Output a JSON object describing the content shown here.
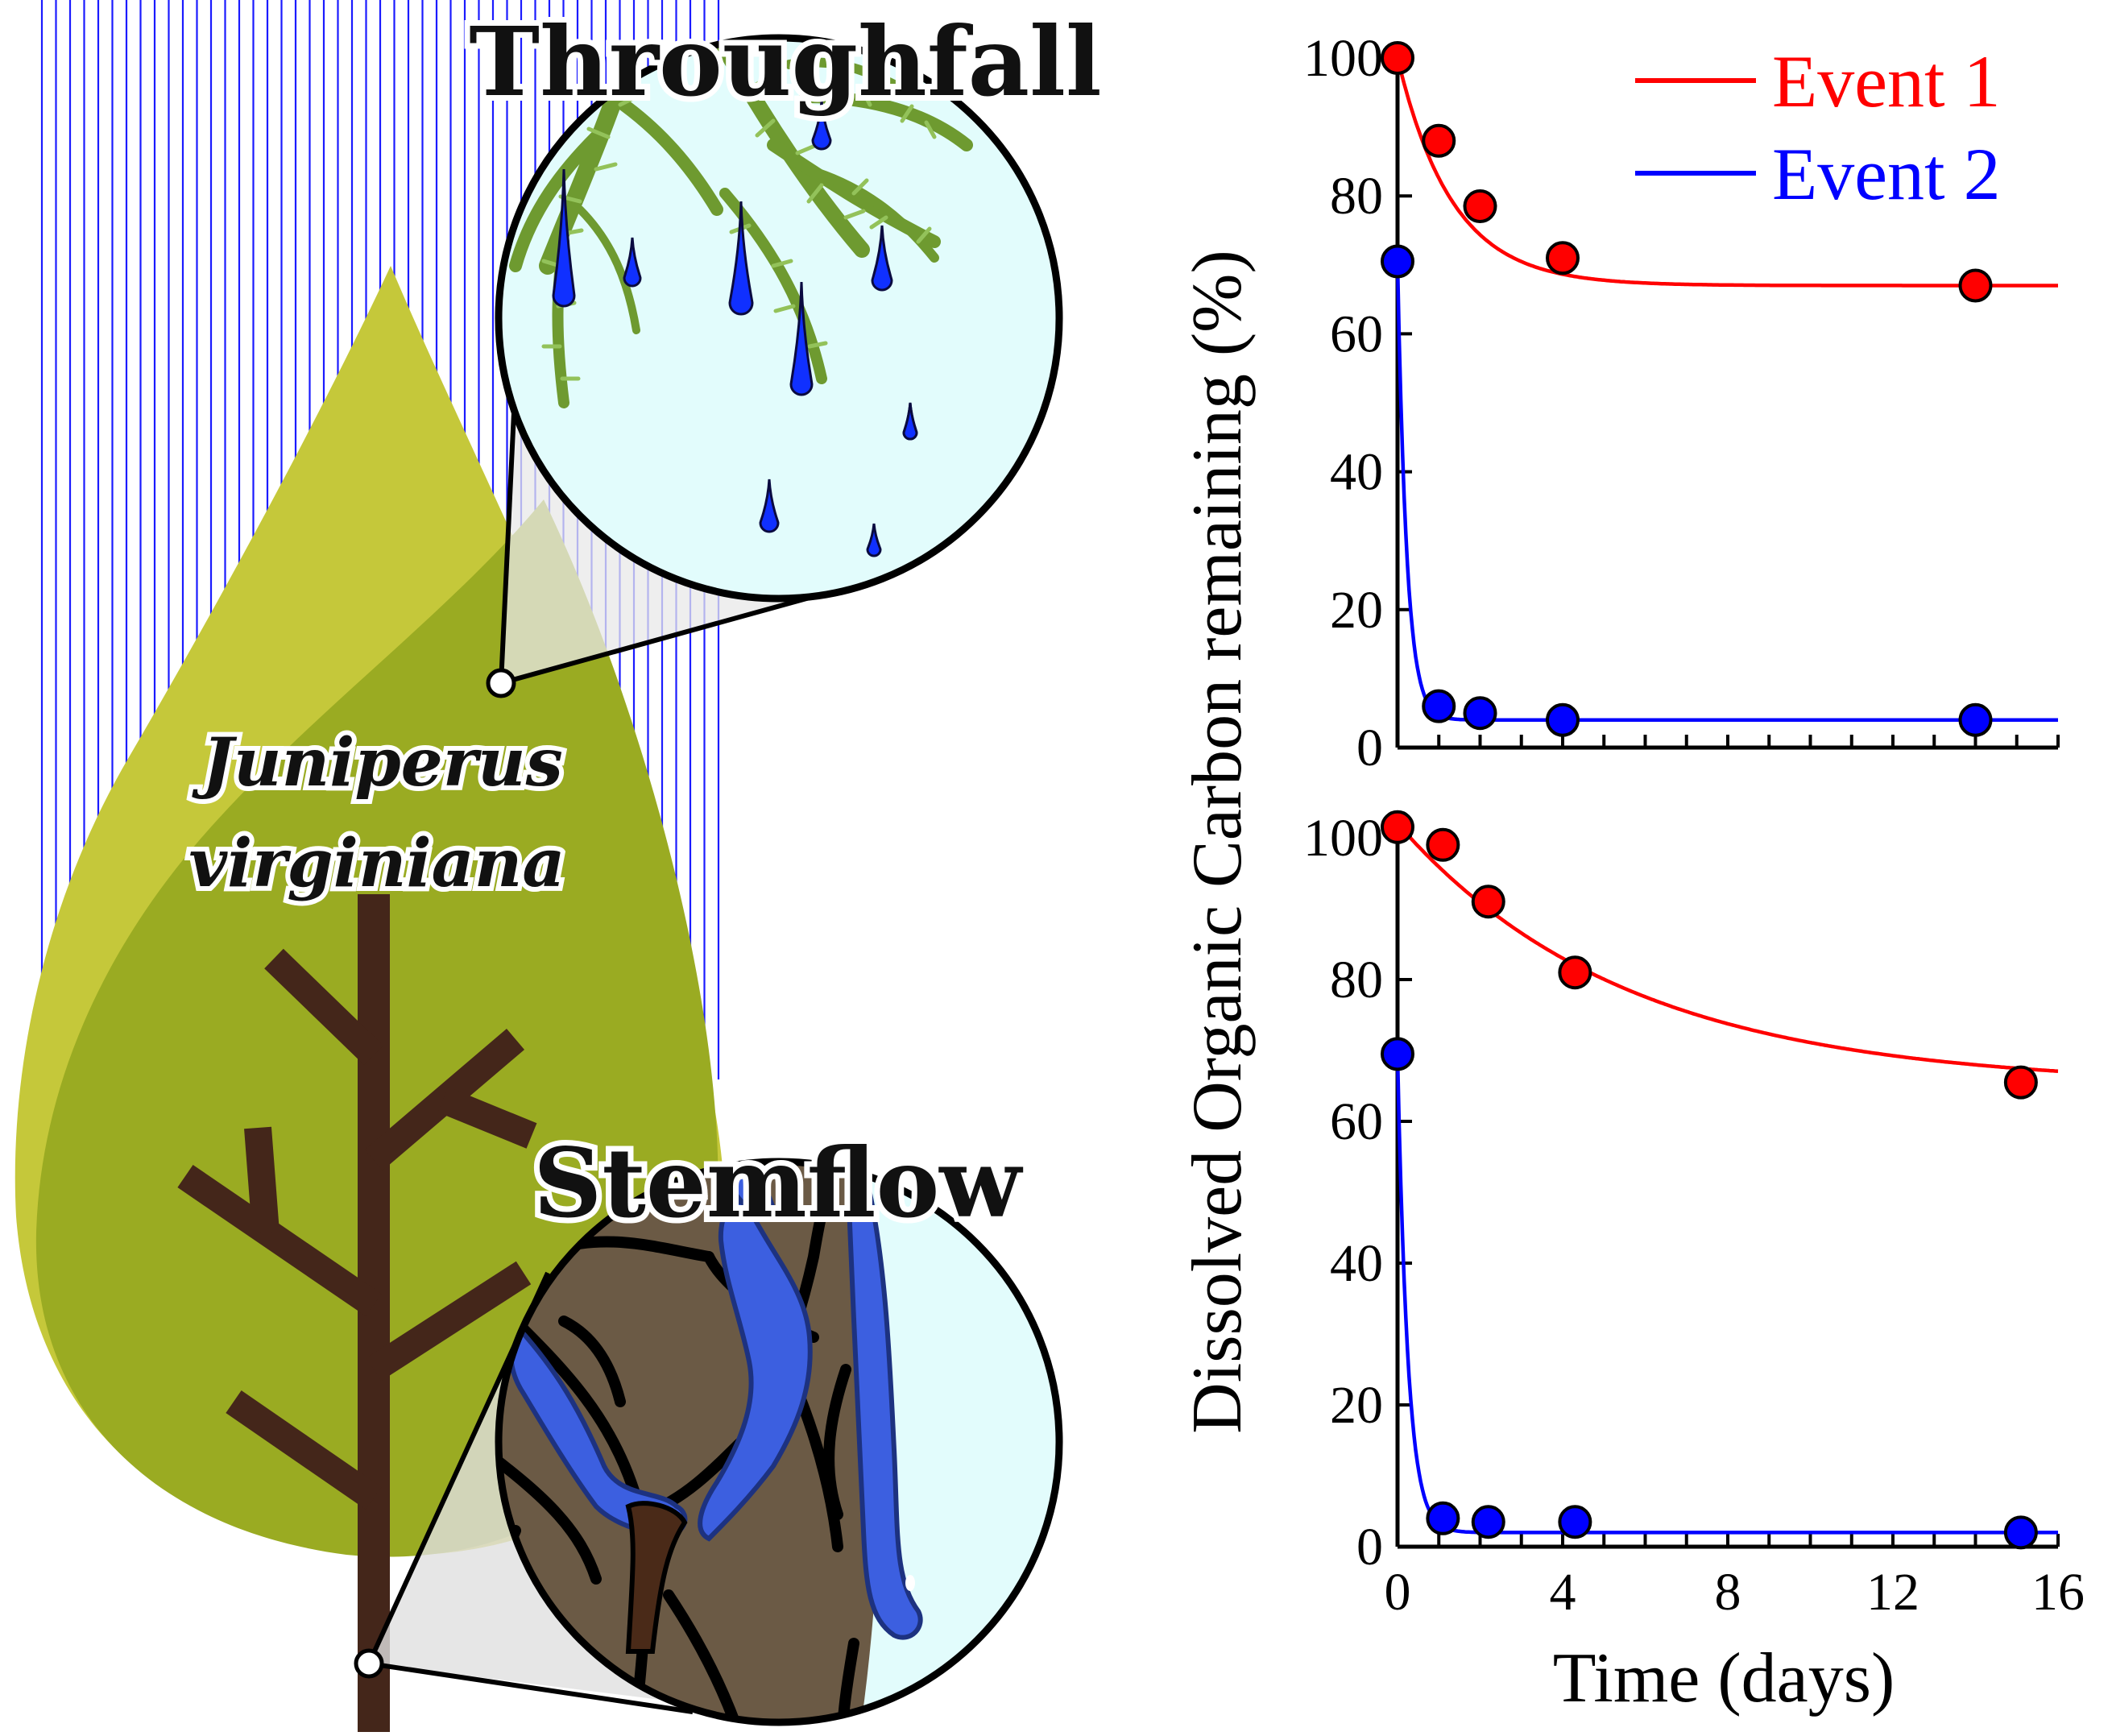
{
  "illustration": {
    "throughfall_label": "Throughfall",
    "stemflow_label": "Stemflow",
    "species_line1": "Juniperus",
    "species_line2": "virginiana",
    "colors": {
      "rain": "#1a1aff",
      "canopy_light": "#c5c83a",
      "canopy_dark": "#9aab22",
      "trunk": "#44261a",
      "bark": "#6b5a45",
      "water": "#3c5fe0",
      "sky": "#e2fcfc",
      "foliage": "#6e9a30"
    }
  },
  "legend": {
    "items": [
      {
        "label": "Event 1",
        "color": "#ff0000"
      },
      {
        "label": "Event 2",
        "color": "#0000ff"
      }
    ]
  },
  "axes": {
    "ylabel": "Dissolved Organic Carbon remaining (%)",
    "xlabel": "Time (days)"
  },
  "chart_data": [
    {
      "type": "scatter",
      "panel": "top",
      "title": "",
      "xlim": [
        0,
        16
      ],
      "ylim": [
        0,
        100
      ],
      "xticks": [
        0,
        4,
        8,
        12,
        16
      ],
      "yticks": [
        0,
        20,
        40,
        60,
        80,
        100
      ],
      "series": [
        {
          "name": "Event 1",
          "color": "#ff0000",
          "points": [
            [
              0,
              100
            ],
            [
              1,
              88
            ],
            [
              2,
              78.5
            ],
            [
              4,
              71
            ],
            [
              14,
              67
            ]
          ],
          "fit": {
            "asymptote": 67,
            "amplitude": 33,
            "rate": 0.75,
            "x_end": 16
          }
        },
        {
          "name": "Event 2",
          "color": "#0000ff",
          "points": [
            [
              0,
              70.5
            ],
            [
              1,
              6
            ],
            [
              2,
              5
            ],
            [
              4,
              4
            ],
            [
              14,
              4
            ]
          ],
          "fit": {
            "asymptote": 4,
            "amplitude": 66.5,
            "rate": 4.5,
            "x_end": 16
          }
        }
      ]
    },
    {
      "type": "scatter",
      "panel": "bottom",
      "title": "",
      "xlim": [
        0,
        16
      ],
      "ylim": [
        0,
        100
      ],
      "xticks": [
        0,
        4,
        8,
        12,
        16
      ],
      "yticks": [
        0,
        20,
        40,
        60,
        80,
        100
      ],
      "xlabel": "Time (days)",
      "series": [
        {
          "name": "Event 1",
          "color": "#ff0000",
          "points": [
            [
              0,
              101.5
            ],
            [
              1.1,
              99
            ],
            [
              2.2,
              91
            ],
            [
              4.3,
              81
            ],
            [
              15.1,
              65.5
            ]
          ],
          "fit": {
            "asymptote": 65,
            "amplitude": 37,
            "rate": 0.18,
            "x_end": 16
          }
        },
        {
          "name": "Event 2",
          "color": "#0000ff",
          "points": [
            [
              0,
              69.5
            ],
            [
              1.1,
              4
            ],
            [
              2.2,
              3.5
            ],
            [
              4.3,
              3.5
            ],
            [
              15.1,
              2
            ]
          ],
          "fit": {
            "asymptote": 2,
            "amplitude": 67.5,
            "rate": 4.0,
            "x_end": 16
          }
        }
      ]
    }
  ]
}
